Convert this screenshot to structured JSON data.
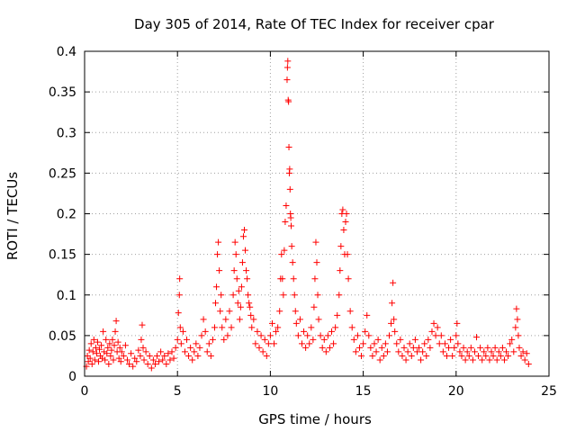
{
  "chart_data": {
    "type": "scatter",
    "title": "Day 305 of 2014, Rate Of TEC Index for receiver cpar",
    "xlabel": "GPS time / hours",
    "ylabel": "ROTI / TECUs",
    "xlim": [
      0,
      25
    ],
    "ylim": [
      0,
      0.4
    ],
    "xticks": [
      0,
      5,
      10,
      15,
      20,
      25
    ],
    "xtick_labels": [
      "0",
      "5",
      "10",
      "15",
      "20",
      "25"
    ],
    "yticks": [
      0,
      0.05,
      0.1,
      0.15,
      0.2,
      0.25,
      0.3,
      0.35,
      0.4
    ],
    "ytick_labels": [
      "0",
      "0.05",
      "0.1",
      "0.15",
      "0.2",
      "0.25",
      "0.3",
      "0.35",
      "0.4"
    ],
    "grid": true,
    "grid_style": "dotted",
    "legend": "none",
    "marker": "plus",
    "marker_color": "#ff0000",
    "series": [
      {
        "points": [
          [
            0.1,
            0.012
          ],
          [
            0.15,
            0.025
          ],
          [
            0.2,
            0.018
          ],
          [
            0.25,
            0.032
          ],
          [
            0.3,
            0.022
          ],
          [
            0.35,
            0.04
          ],
          [
            0.4,
            0.015
          ],
          [
            0.45,
            0.03
          ],
          [
            0.5,
            0.045
          ],
          [
            0.55,
            0.02
          ],
          [
            0.6,
            0.035
          ],
          [
            0.65,
            0.028
          ],
          [
            0.7,
            0.042
          ],
          [
            0.75,
            0.018
          ],
          [
            0.8,
            0.033
          ],
          [
            0.85,
            0.025
          ],
          [
            0.9,
            0.038
          ],
          [
            0.95,
            0.022
          ],
          [
            1.0,
            0.055
          ],
          [
            1.05,
            0.03
          ],
          [
            1.1,
            0.02
          ],
          [
            1.15,
            0.045
          ],
          [
            1.2,
            0.028
          ],
          [
            1.25,
            0.035
          ],
          [
            1.3,
            0.015
          ],
          [
            1.35,
            0.04
          ],
          [
            1.4,
            0.025
          ],
          [
            1.45,
            0.032
          ],
          [
            1.5,
            0.045
          ],
          [
            1.55,
            0.02
          ],
          [
            1.6,
            0.038
          ],
          [
            1.65,
            0.055
          ],
          [
            1.7,
            0.068
          ],
          [
            1.75,
            0.03
          ],
          [
            1.8,
            0.042
          ],
          [
            1.85,
            0.022
          ],
          [
            1.9,
            0.035
          ],
          [
            1.95,
            0.018
          ],
          [
            2.0,
            0.03
          ],
          [
            2.1,
            0.025
          ],
          [
            2.2,
            0.038
          ],
          [
            2.3,
            0.02
          ],
          [
            2.4,
            0.015
          ],
          [
            2.5,
            0.028
          ],
          [
            2.6,
            0.012
          ],
          [
            2.7,
            0.022
          ],
          [
            2.8,
            0.018
          ],
          [
            2.9,
            0.032
          ],
          [
            3.0,
            0.025
          ],
          [
            3.05,
            0.045
          ],
          [
            3.1,
            0.063
          ],
          [
            3.15,
            0.035
          ],
          [
            3.2,
            0.02
          ],
          [
            3.3,
            0.03
          ],
          [
            3.4,
            0.015
          ],
          [
            3.5,
            0.025
          ],
          [
            3.6,
            0.01
          ],
          [
            3.7,
            0.02
          ],
          [
            3.8,
            0.015
          ],
          [
            3.9,
            0.025
          ],
          [
            4.0,
            0.018
          ],
          [
            4.1,
            0.03
          ],
          [
            4.2,
            0.02
          ],
          [
            4.3,
            0.025
          ],
          [
            4.4,
            0.015
          ],
          [
            4.5,
            0.028
          ],
          [
            4.6,
            0.02
          ],
          [
            4.7,
            0.03
          ],
          [
            4.8,
            0.022
          ],
          [
            4.9,
            0.035
          ],
          [
            5.0,
            0.045
          ],
          [
            5.05,
            0.078
          ],
          [
            5.1,
            0.1
          ],
          [
            5.12,
            0.12
          ],
          [
            5.15,
            0.06
          ],
          [
            5.2,
            0.04
          ],
          [
            5.3,
            0.055
          ],
          [
            5.4,
            0.03
          ],
          [
            5.5,
            0.045
          ],
          [
            5.6,
            0.025
          ],
          [
            5.7,
            0.035
          ],
          [
            5.8,
            0.02
          ],
          [
            5.9,
            0.03
          ],
          [
            6.0,
            0.04
          ],
          [
            6.1,
            0.025
          ],
          [
            6.2,
            0.035
          ],
          [
            6.3,
            0.05
          ],
          [
            6.4,
            0.07
          ],
          [
            6.5,
            0.055
          ],
          [
            6.6,
            0.03
          ],
          [
            6.7,
            0.04
          ],
          [
            6.8,
            0.025
          ],
          [
            6.9,
            0.045
          ],
          [
            7.0,
            0.06
          ],
          [
            7.05,
            0.09
          ],
          [
            7.1,
            0.11
          ],
          [
            7.15,
            0.15
          ],
          [
            7.2,
            0.165
          ],
          [
            7.25,
            0.13
          ],
          [
            7.3,
            0.08
          ],
          [
            7.35,
            0.1
          ],
          [
            7.4,
            0.06
          ],
          [
            7.5,
            0.045
          ],
          [
            7.6,
            0.07
          ],
          [
            7.7,
            0.05
          ],
          [
            7.8,
            0.08
          ],
          [
            7.9,
            0.06
          ],
          [
            8.0,
            0.1
          ],
          [
            8.05,
            0.13
          ],
          [
            8.1,
            0.165
          ],
          [
            8.15,
            0.15
          ],
          [
            8.2,
            0.12
          ],
          [
            8.25,
            0.09
          ],
          [
            8.3,
            0.105
          ],
          [
            8.35,
            0.07
          ],
          [
            8.4,
            0.085
          ],
          [
            8.45,
            0.11
          ],
          [
            8.5,
            0.14
          ],
          [
            8.55,
            0.172
          ],
          [
            8.6,
            0.18
          ],
          [
            8.65,
            0.155
          ],
          [
            8.7,
            0.13
          ],
          [
            8.75,
            0.12
          ],
          [
            8.8,
            0.1
          ],
          [
            8.85,
            0.09
          ],
          [
            8.9,
            0.085
          ],
          [
            8.95,
            0.075
          ],
          [
            9.0,
            0.06
          ],
          [
            9.1,
            0.07
          ],
          [
            9.2,
            0.04
          ],
          [
            9.3,
            0.055
          ],
          [
            9.4,
            0.035
          ],
          [
            9.5,
            0.05
          ],
          [
            9.6,
            0.03
          ],
          [
            9.7,
            0.045
          ],
          [
            9.8,
            0.025
          ],
          [
            9.9,
            0.04
          ],
          [
            10.0,
            0.05
          ],
          [
            10.1,
            0.065
          ],
          [
            10.2,
            0.04
          ],
          [
            10.3,
            0.055
          ],
          [
            10.4,
            0.06
          ],
          [
            10.5,
            0.08
          ],
          [
            10.55,
            0.12
          ],
          [
            10.6,
            0.15
          ],
          [
            10.65,
            0.12
          ],
          [
            10.7,
            0.1
          ],
          [
            10.75,
            0.155
          ],
          [
            10.8,
            0.19
          ],
          [
            10.85,
            0.21
          ],
          [
            10.9,
            0.365
          ],
          [
            10.92,
            0.38
          ],
          [
            10.94,
            0.388
          ],
          [
            10.96,
            0.34
          ],
          [
            10.98,
            0.338
          ],
          [
            11.0,
            0.282
          ],
          [
            11.02,
            0.25
          ],
          [
            11.04,
            0.255
          ],
          [
            11.06,
            0.23
          ],
          [
            11.08,
            0.2
          ],
          [
            11.1,
            0.195
          ],
          [
            11.12,
            0.185
          ],
          [
            11.15,
            0.16
          ],
          [
            11.2,
            0.14
          ],
          [
            11.25,
            0.12
          ],
          [
            11.3,
            0.1
          ],
          [
            11.35,
            0.08
          ],
          [
            11.4,
            0.065
          ],
          [
            11.5,
            0.05
          ],
          [
            11.6,
            0.07
          ],
          [
            11.7,
            0.04
          ],
          [
            11.8,
            0.055
          ],
          [
            11.9,
            0.035
          ],
          [
            12.0,
            0.05
          ],
          [
            12.1,
            0.04
          ],
          [
            12.2,
            0.06
          ],
          [
            12.3,
            0.045
          ],
          [
            12.35,
            0.085
          ],
          [
            12.4,
            0.12
          ],
          [
            12.45,
            0.165
          ],
          [
            12.5,
            0.14
          ],
          [
            12.55,
            0.1
          ],
          [
            12.6,
            0.07
          ],
          [
            12.7,
            0.05
          ],
          [
            12.8,
            0.035
          ],
          [
            12.9,
            0.045
          ],
          [
            13.0,
            0.03
          ],
          [
            13.1,
            0.05
          ],
          [
            13.2,
            0.035
          ],
          [
            13.3,
            0.055
          ],
          [
            13.4,
            0.04
          ],
          [
            13.5,
            0.06
          ],
          [
            13.6,
            0.075
          ],
          [
            13.7,
            0.1
          ],
          [
            13.75,
            0.13
          ],
          [
            13.8,
            0.16
          ],
          [
            13.85,
            0.2
          ],
          [
            13.9,
            0.205
          ],
          [
            13.95,
            0.18
          ],
          [
            14.0,
            0.15
          ],
          [
            14.05,
            0.19
          ],
          [
            14.1,
            0.2
          ],
          [
            14.15,
            0.15
          ],
          [
            14.2,
            0.12
          ],
          [
            14.3,
            0.08
          ],
          [
            14.4,
            0.06
          ],
          [
            14.5,
            0.045
          ],
          [
            14.6,
            0.03
          ],
          [
            14.7,
            0.05
          ],
          [
            14.8,
            0.035
          ],
          [
            14.9,
            0.025
          ],
          [
            15.0,
            0.04
          ],
          [
            15.1,
            0.055
          ],
          [
            15.2,
            0.075
          ],
          [
            15.3,
            0.05
          ],
          [
            15.4,
            0.035
          ],
          [
            15.5,
            0.025
          ],
          [
            15.6,
            0.04
          ],
          [
            15.7,
            0.03
          ],
          [
            15.8,
            0.045
          ],
          [
            15.9,
            0.02
          ],
          [
            16.0,
            0.035
          ],
          [
            16.1,
            0.025
          ],
          [
            16.2,
            0.04
          ],
          [
            16.3,
            0.03
          ],
          [
            16.4,
            0.05
          ],
          [
            16.5,
            0.065
          ],
          [
            16.55,
            0.09
          ],
          [
            16.6,
            0.115
          ],
          [
            16.65,
            0.07
          ],
          [
            16.7,
            0.055
          ],
          [
            16.8,
            0.04
          ],
          [
            16.9,
            0.03
          ],
          [
            17.0,
            0.045
          ],
          [
            17.1,
            0.025
          ],
          [
            17.2,
            0.035
          ],
          [
            17.3,
            0.02
          ],
          [
            17.4,
            0.03
          ],
          [
            17.5,
            0.04
          ],
          [
            17.6,
            0.025
          ],
          [
            17.7,
            0.035
          ],
          [
            17.8,
            0.045
          ],
          [
            17.9,
            0.03
          ],
          [
            18.0,
            0.035
          ],
          [
            18.1,
            0.02
          ],
          [
            18.2,
            0.03
          ],
          [
            18.3,
            0.04
          ],
          [
            18.4,
            0.025
          ],
          [
            18.5,
            0.045
          ],
          [
            18.6,
            0.035
          ],
          [
            18.7,
            0.055
          ],
          [
            18.8,
            0.065
          ],
          [
            18.9,
            0.05
          ],
          [
            19.0,
            0.06
          ],
          [
            19.1,
            0.04
          ],
          [
            19.2,
            0.05
          ],
          [
            19.3,
            0.03
          ],
          [
            19.4,
            0.04
          ],
          [
            19.5,
            0.025
          ],
          [
            19.6,
            0.035
          ],
          [
            19.7,
            0.045
          ],
          [
            19.8,
            0.025
          ],
          [
            19.9,
            0.035
          ],
          [
            20.0,
            0.05
          ],
          [
            20.05,
            0.065
          ],
          [
            20.1,
            0.04
          ],
          [
            20.2,
            0.03
          ],
          [
            20.3,
            0.025
          ],
          [
            20.4,
            0.035
          ],
          [
            20.5,
            0.02
          ],
          [
            20.6,
            0.03
          ],
          [
            20.7,
            0.025
          ],
          [
            20.8,
            0.035
          ],
          [
            20.9,
            0.02
          ],
          [
            21.0,
            0.03
          ],
          [
            21.1,
            0.048
          ],
          [
            21.2,
            0.025
          ],
          [
            21.3,
            0.035
          ],
          [
            21.4,
            0.02
          ],
          [
            21.5,
            0.03
          ],
          [
            21.6,
            0.025
          ],
          [
            21.7,
            0.035
          ],
          [
            21.8,
            0.02
          ],
          [
            21.9,
            0.03
          ],
          [
            22.0,
            0.025
          ],
          [
            22.1,
            0.035
          ],
          [
            22.2,
            0.02
          ],
          [
            22.3,
            0.03
          ],
          [
            22.4,
            0.025
          ],
          [
            22.5,
            0.035
          ],
          [
            22.6,
            0.02
          ],
          [
            22.7,
            0.03
          ],
          [
            22.8,
            0.025
          ],
          [
            22.9,
            0.04
          ],
          [
            23.0,
            0.045
          ],
          [
            23.1,
            0.03
          ],
          [
            23.2,
            0.06
          ],
          [
            23.25,
            0.083
          ],
          [
            23.3,
            0.07
          ],
          [
            23.35,
            0.05
          ],
          [
            23.4,
            0.035
          ],
          [
            23.5,
            0.025
          ],
          [
            23.6,
            0.03
          ],
          [
            23.7,
            0.02
          ],
          [
            23.8,
            0.028
          ],
          [
            23.9,
            0.015
          ]
        ]
      }
    ]
  }
}
